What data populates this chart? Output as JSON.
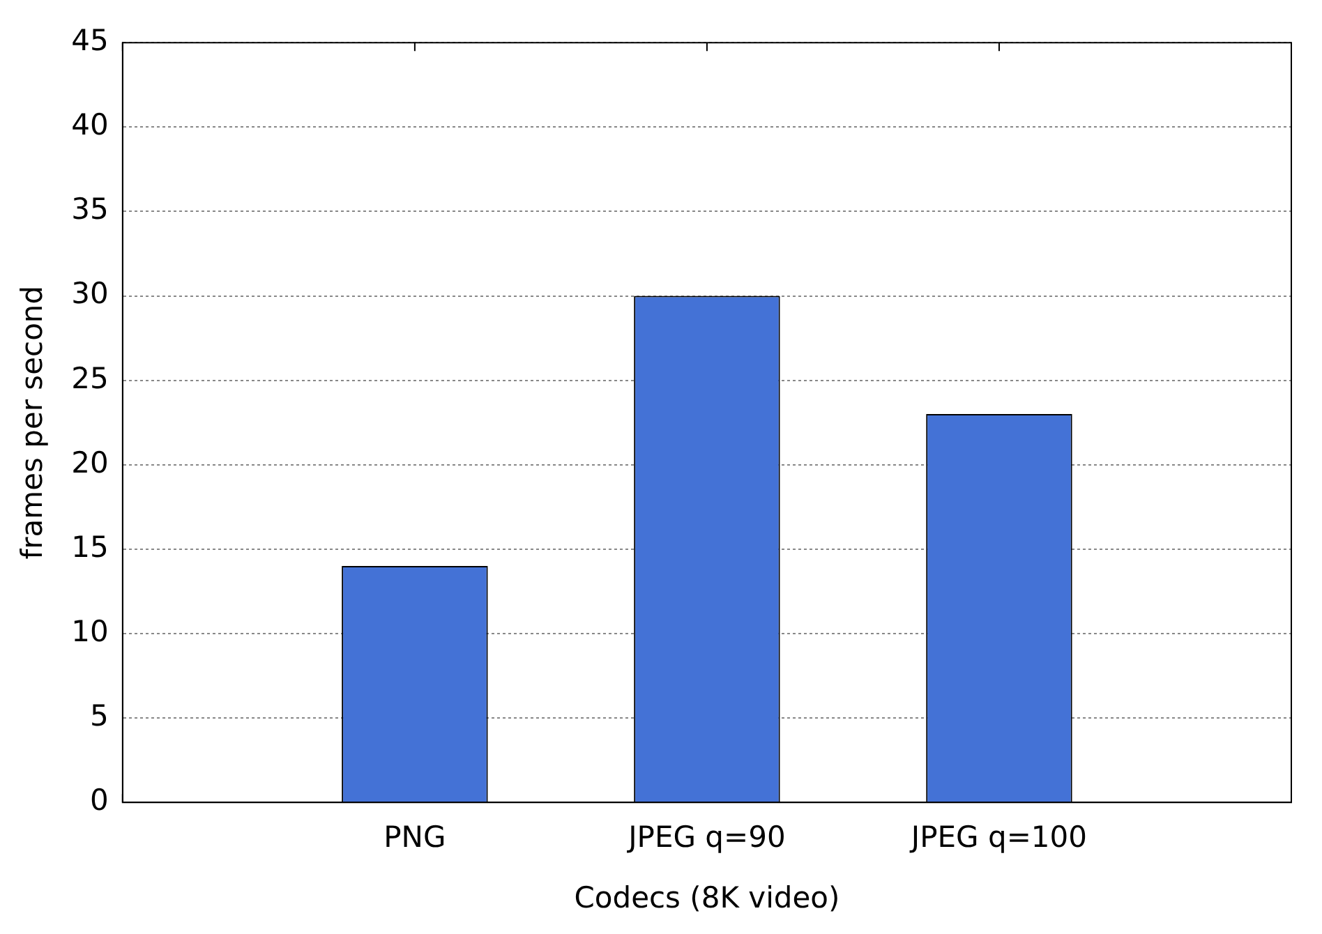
{
  "chart_data": {
    "type": "bar",
    "xlabel": "Codecs (8K video)",
    "ylabel": "frames per second",
    "categories": [
      null,
      "PNG",
      "JPEG q=90",
      "JPEG q=100",
      null
    ],
    "values": [
      null,
      14,
      30,
      23,
      null
    ],
    "color": "#4472d6",
    "ylim": [
      0,
      45
    ],
    "yticks": [
      0,
      5,
      10,
      15,
      20,
      25,
      30,
      35,
      40,
      45
    ],
    "grid": "y",
    "legend": false
  }
}
